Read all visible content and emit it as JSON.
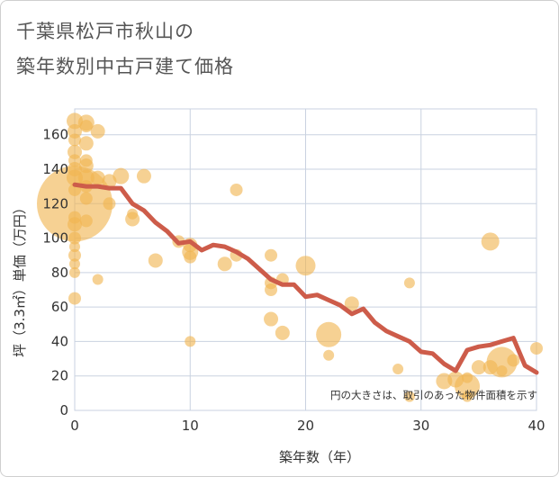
{
  "title_line1": "千葉県松戸市秋山の",
  "title_line2": "築年数別中古戸建て価格",
  "chart_data": {
    "type": "scatter",
    "title": "千葉県松戸市秋山の築年数別中古戸建て価格",
    "xlabel": "築年数（年）",
    "ylabel": "坪（3.3㎡）単価（万円）",
    "xlim": [
      0,
      40
    ],
    "ylim": [
      0,
      175
    ],
    "xticks": [
      0,
      10,
      20,
      30,
      40
    ],
    "yticks": [
      0,
      20,
      40,
      60,
      80,
      100,
      120,
      140,
      160
    ],
    "grid": true,
    "note": "円の大きさは、取引のあった物件面積を示す",
    "colors": {
      "bubble": "#f0b450",
      "line": "#cd5c4a",
      "grid": "#c9d2e0"
    },
    "bubbles": [
      {
        "x": 0,
        "y": 120,
        "s": 42
      },
      {
        "x": 0,
        "y": 168,
        "s": 9
      },
      {
        "x": 0,
        "y": 162,
        "s": 8
      },
      {
        "x": 0,
        "y": 157,
        "s": 7
      },
      {
        "x": 0,
        "y": 150,
        "s": 8
      },
      {
        "x": 0,
        "y": 145,
        "s": 7
      },
      {
        "x": 0,
        "y": 140,
        "s": 8
      },
      {
        "x": 0,
        "y": 135,
        "s": 9
      },
      {
        "x": 0,
        "y": 128,
        "s": 7
      },
      {
        "x": 0,
        "y": 112,
        "s": 7
      },
      {
        "x": 0,
        "y": 108,
        "s": 8
      },
      {
        "x": 0,
        "y": 100,
        "s": 7
      },
      {
        "x": 0,
        "y": 95,
        "s": 6
      },
      {
        "x": 0,
        "y": 90,
        "s": 7
      },
      {
        "x": 0,
        "y": 85,
        "s": 6
      },
      {
        "x": 0,
        "y": 80,
        "s": 6
      },
      {
        "x": 0,
        "y": 65,
        "s": 7
      },
      {
        "x": 1,
        "y": 167,
        "s": 9
      },
      {
        "x": 1,
        "y": 165,
        "s": 7
      },
      {
        "x": 1,
        "y": 155,
        "s": 8
      },
      {
        "x": 1,
        "y": 145,
        "s": 7
      },
      {
        "x": 1,
        "y": 142,
        "s": 8
      },
      {
        "x": 1,
        "y": 135,
        "s": 9
      },
      {
        "x": 1,
        "y": 130,
        "s": 7
      },
      {
        "x": 1,
        "y": 123,
        "s": 7
      },
      {
        "x": 1,
        "y": 110,
        "s": 7
      },
      {
        "x": 2,
        "y": 162,
        "s": 8
      },
      {
        "x": 2,
        "y": 135,
        "s": 8
      },
      {
        "x": 2,
        "y": 76,
        "s": 6
      },
      {
        "x": 3,
        "y": 133,
        "s": 8
      },
      {
        "x": 3,
        "y": 120,
        "s": 7
      },
      {
        "x": 4,
        "y": 136,
        "s": 9
      },
      {
        "x": 5,
        "y": 111,
        "s": 8
      },
      {
        "x": 5,
        "y": 114,
        "s": 6
      },
      {
        "x": 6,
        "y": 136,
        "s": 8
      },
      {
        "x": 7,
        "y": 87,
        "s": 8
      },
      {
        "x": 9,
        "y": 98,
        "s": 7
      },
      {
        "x": 10,
        "y": 96,
        "s": 8
      },
      {
        "x": 10,
        "y": 92,
        "s": 9
      },
      {
        "x": 10,
        "y": 89,
        "s": 7
      },
      {
        "x": 10,
        "y": 40,
        "s": 6
      },
      {
        "x": 13,
        "y": 85,
        "s": 8
      },
      {
        "x": 14,
        "y": 90,
        "s": 7
      },
      {
        "x": 14,
        "y": 128,
        "s": 7
      },
      {
        "x": 17,
        "y": 90,
        "s": 7
      },
      {
        "x": 17,
        "y": 74,
        "s": 7
      },
      {
        "x": 17,
        "y": 70,
        "s": 7
      },
      {
        "x": 17,
        "y": 53,
        "s": 8
      },
      {
        "x": 18,
        "y": 76,
        "s": 7
      },
      {
        "x": 18,
        "y": 45,
        "s": 8
      },
      {
        "x": 20,
        "y": 84,
        "s": 11
      },
      {
        "x": 22,
        "y": 44,
        "s": 14
      },
      {
        "x": 22,
        "y": 32,
        "s": 6
      },
      {
        "x": 24,
        "y": 62,
        "s": 8
      },
      {
        "x": 28,
        "y": 24,
        "s": 6
      },
      {
        "x": 29,
        "y": 74,
        "s": 6
      },
      {
        "x": 29,
        "y": 8,
        "s": 6
      },
      {
        "x": 32,
        "y": 17,
        "s": 9
      },
      {
        "x": 33,
        "y": 18,
        "s": 9
      },
      {
        "x": 34,
        "y": 14,
        "s": 14
      },
      {
        "x": 34,
        "y": 8,
        "s": 6
      },
      {
        "x": 34,
        "y": 19,
        "s": 6
      },
      {
        "x": 35,
        "y": 25,
        "s": 8
      },
      {
        "x": 36,
        "y": 98,
        "s": 10
      },
      {
        "x": 36,
        "y": 25,
        "s": 8
      },
      {
        "x": 37,
        "y": 28,
        "s": 17
      },
      {
        "x": 37,
        "y": 23,
        "s": 6
      },
      {
        "x": 38,
        "y": 29,
        "s": 7
      },
      {
        "x": 40,
        "y": 36,
        "s": 7
      }
    ],
    "line": {
      "x": [
        0,
        1,
        2,
        3,
        4,
        5,
        6,
        7,
        8,
        9,
        10,
        11,
        12,
        13,
        14,
        15,
        16,
        17,
        18,
        19,
        20,
        21,
        22,
        23,
        24,
        25,
        26,
        27,
        28,
        29,
        30,
        31,
        32,
        33,
        34,
        35,
        36,
        37,
        38,
        39,
        40
      ],
      "y": [
        131,
        130,
        130,
        129,
        129,
        120,
        116,
        109,
        104,
        97,
        98,
        93,
        96,
        95,
        92,
        88,
        82,
        76,
        73,
        73,
        66,
        67,
        64,
        61,
        56,
        59,
        51,
        46,
        43,
        40,
        34,
        33,
        27,
        23,
        35,
        37,
        38,
        40,
        42,
        26,
        22
      ]
    }
  }
}
